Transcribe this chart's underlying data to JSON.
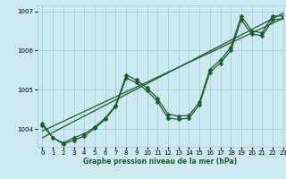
{
  "title": "Graphe pression niveau de la mer (hPa)",
  "bg_color": "#cce8f0",
  "grid_color": "#9fc8d8",
  "line_color": "#1a5c2a",
  "ylim": [
    1003.55,
    1007.15
  ],
  "xlim": [
    -0.5,
    23
  ],
  "yticks": [
    1004,
    1005,
    1006,
    1007
  ],
  "xticks": [
    0,
    1,
    2,
    3,
    4,
    5,
    6,
    7,
    8,
    9,
    10,
    11,
    12,
    13,
    14,
    15,
    16,
    17,
    18,
    19,
    20,
    21,
    22,
    23
  ],
  "series": [
    {
      "x": [
        0,
        1,
        2,
        3,
        4,
        5,
        6,
        7,
        8,
        9,
        10,
        11,
        12,
        13,
        14,
        15,
        16,
        17,
        18,
        19,
        20,
        21,
        22,
        23
      ],
      "y": [
        1004.15,
        1003.78,
        1003.65,
        1003.78,
        1003.88,
        1004.05,
        1004.28,
        1004.6,
        1005.38,
        1005.25,
        1005.05,
        1004.78,
        1004.38,
        1004.33,
        1004.35,
        1004.68,
        1005.52,
        1005.75,
        1006.08,
        1006.88,
        1006.5,
        1006.45,
        1006.88,
        1006.88
      ]
    },
    {
      "x": [
        0,
        1,
        2,
        3,
        4,
        5,
        6,
        7,
        8,
        9,
        10,
        11,
        12,
        13,
        14,
        15,
        16,
        17,
        18,
        19,
        20,
        21,
        22,
        23
      ],
      "y": [
        1004.1,
        1003.78,
        1003.62,
        1003.72,
        1003.82,
        1004.02,
        1004.25,
        1004.58,
        1005.3,
        1005.18,
        1004.98,
        1004.7,
        1004.28,
        1004.25,
        1004.28,
        1004.62,
        1005.45,
        1005.68,
        1006.0,
        1006.78,
        1006.42,
        1006.38,
        1006.78,
        1006.82
      ]
    },
    {
      "x": [
        0,
        23
      ],
      "y": [
        1003.95,
        1006.82
      ]
    },
    {
      "x": [
        0,
        23
      ],
      "y": [
        1003.78,
        1006.95
      ]
    }
  ],
  "marker": "D",
  "markersize": 2.5,
  "lw": 0.9
}
